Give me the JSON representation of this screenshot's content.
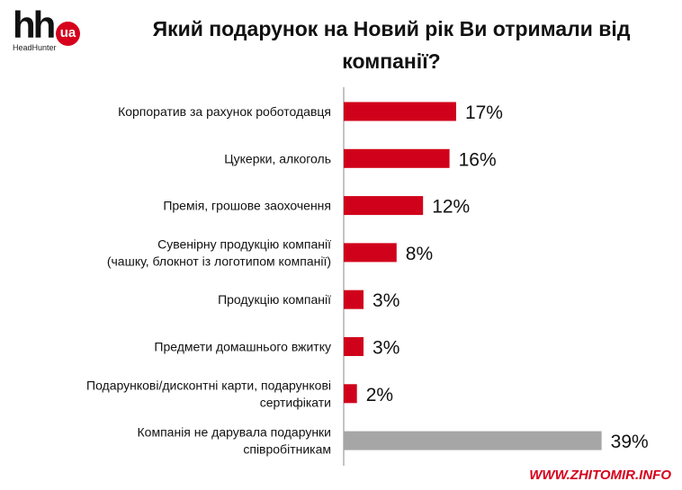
{
  "logo": {
    "brand": "hh",
    "badge": "ua",
    "sub": "HeadHunter"
  },
  "watermark": "WWW.ZHITOMIR.INFO",
  "chart_data": {
    "type": "bar",
    "orientation": "horizontal",
    "title": "Який подарунок на Новий рік Ви отримали від компанії?",
    "categories": [
      [
        "Корпоратив за рахунок роботодавця"
      ],
      [
        "Цукерки, алкоголь"
      ],
      [
        "Премія, грошове заохочення"
      ],
      [
        "Сувенірну продукцію компанії",
        "(чашку, блокнот із логотипом компанії)"
      ],
      [
        "Продукцію компанії"
      ],
      [
        "Предмети домашнього вжитку"
      ],
      [
        "Подарункові/дисконтні карти, подарункові",
        "сертифікати"
      ],
      [
        "Компанія не дарувала подарунки",
        "співробітникам"
      ]
    ],
    "values": [
      17,
      16,
      12,
      8,
      3,
      3,
      2,
      39
    ],
    "value_labels": [
      "17%",
      "16%",
      "12%",
      "8%",
      "3%",
      "3%",
      "2%",
      "39%"
    ],
    "colors": [
      "#d0021b",
      "#d0021b",
      "#d0021b",
      "#d0021b",
      "#d0021b",
      "#d0021b",
      "#d0021b",
      "#a6a6a6"
    ],
    "xlim": [
      0,
      40
    ]
  }
}
